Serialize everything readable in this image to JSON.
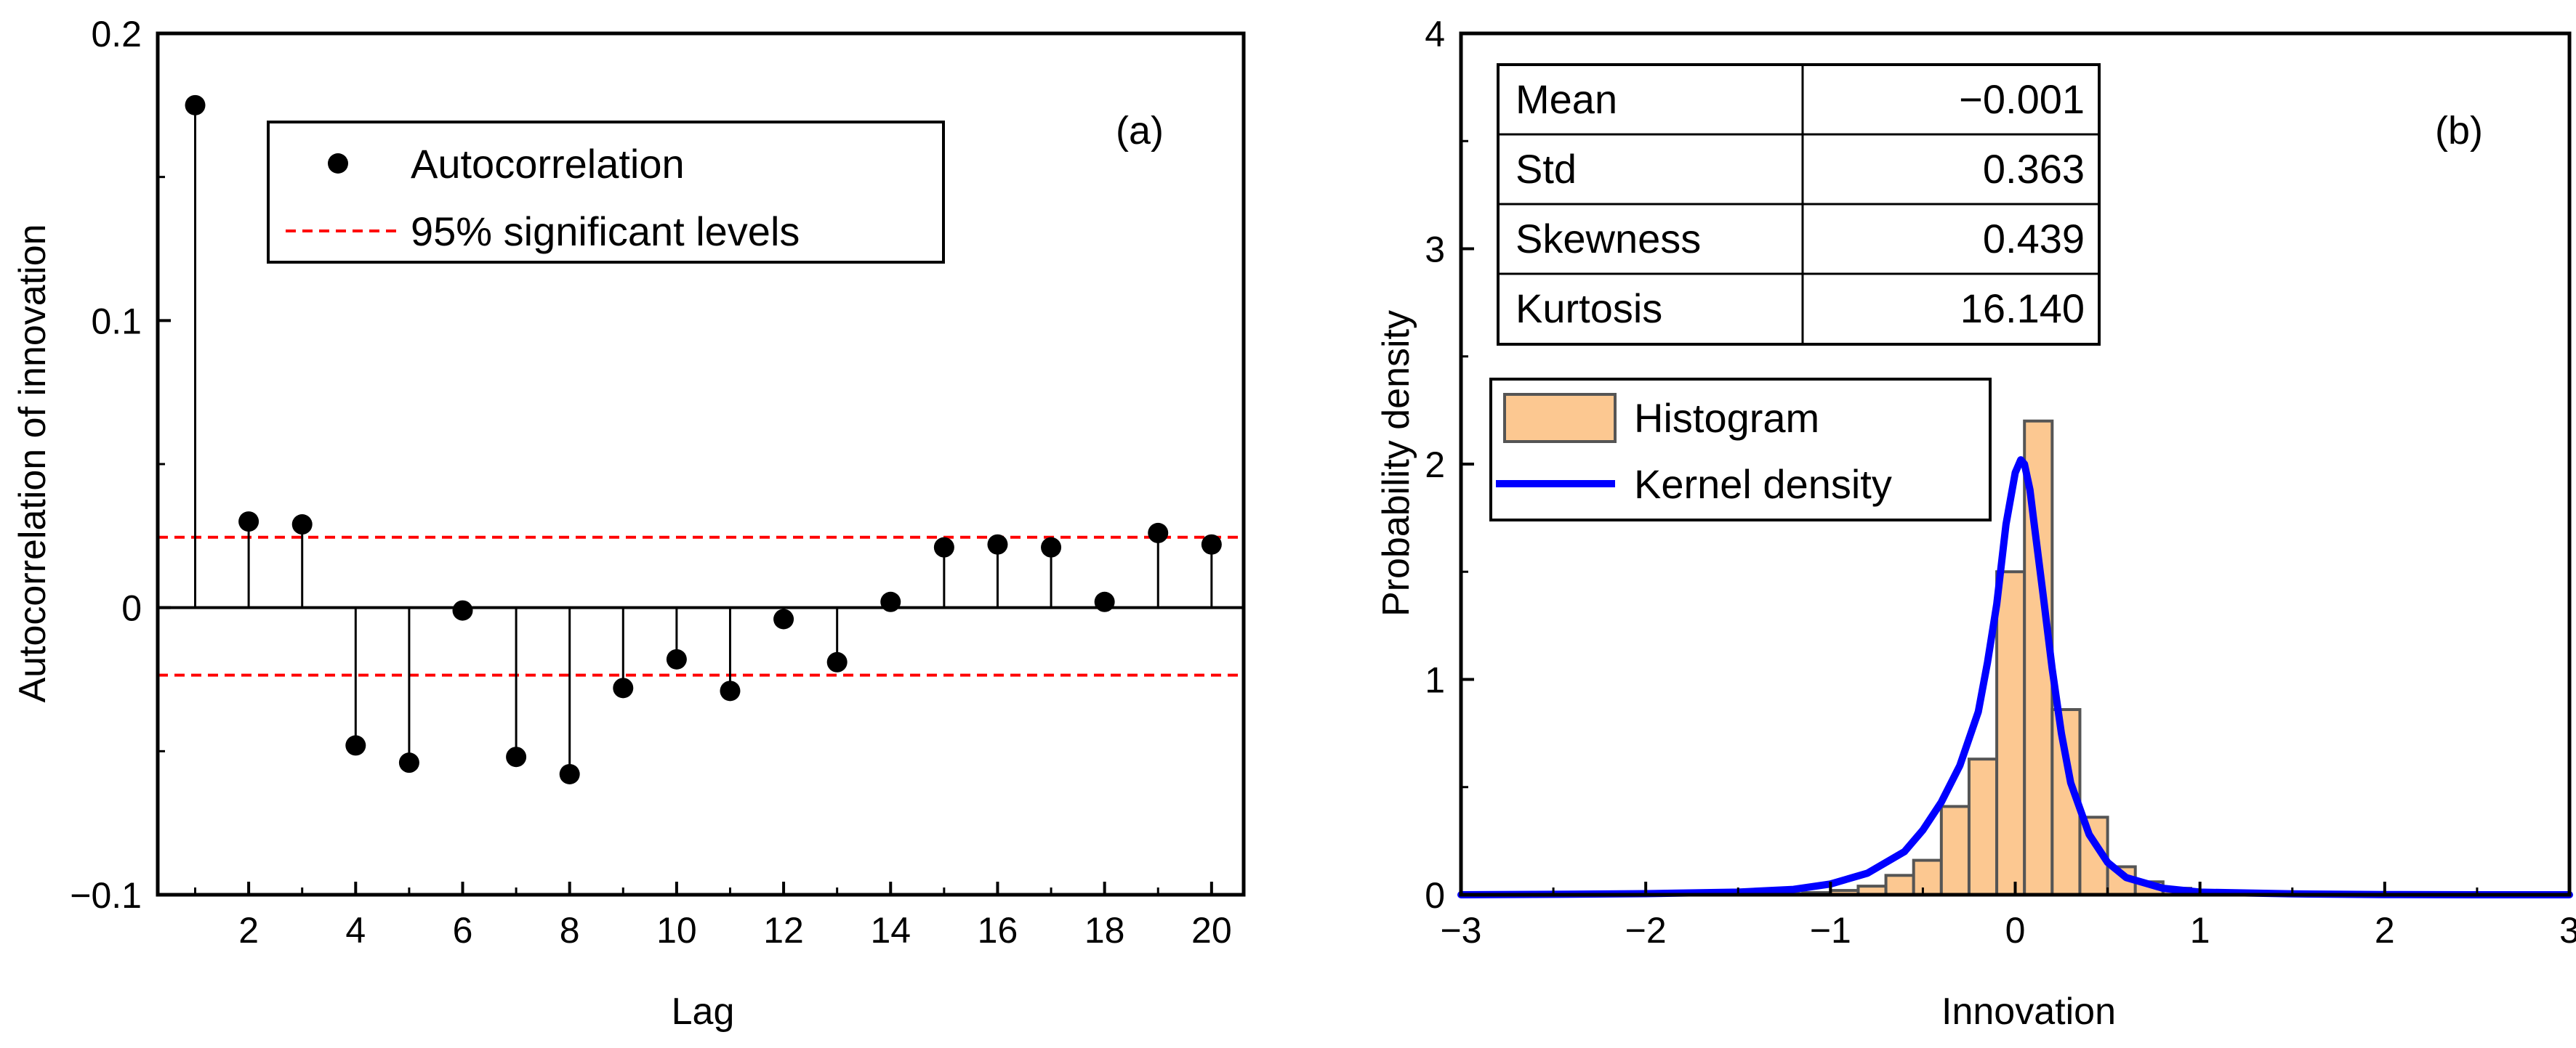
{
  "chart_data": [
    {
      "type": "stem",
      "panel_label": "(a)",
      "xlabel": "Lag",
      "ylabel": "Autocorrelation of innovation",
      "xlim": [
        0.3,
        20.6
      ],
      "ylim": [
        -0.1,
        0.2
      ],
      "xticks": [
        2,
        4,
        6,
        8,
        10,
        12,
        14,
        16,
        18,
        20
      ],
      "xtick_labels": [
        "2",
        "4",
        "6",
        "8",
        "10",
        "12",
        "14",
        "16",
        "18",
        "20"
      ],
      "yticks": [
        -0.1,
        0,
        0.1,
        0.2
      ],
      "ytick_labels": [
        "−0.1",
        "0",
        "0.1",
        "0.2"
      ],
      "series": [
        {
          "name": "Autocorrelation",
          "x": [
            1,
            2,
            3,
            4,
            5,
            6,
            7,
            8,
            9,
            10,
            11,
            12,
            13,
            14,
            15,
            16,
            17,
            18,
            19,
            20
          ],
          "values": [
            0.175,
            0.03,
            0.029,
            -0.048,
            -0.054,
            -0.001,
            -0.052,
            -0.058,
            -0.028,
            -0.018,
            -0.029,
            -0.004,
            -0.019,
            0.002,
            0.021,
            0.022,
            0.021,
            0.002,
            0.026,
            0.022
          ]
        }
      ],
      "significance": {
        "name": "95% significant levels",
        "upper": 0.0245,
        "lower": -0.0235,
        "color": "#ff0000"
      },
      "legend_position": "top-center"
    },
    {
      "type": "histogram",
      "panel_label": "(b)",
      "xlabel": "Innovation",
      "ylabel": "Probability density",
      "xlim": [
        -3,
        3
      ],
      "ylim": [
        0,
        4
      ],
      "xticks": [
        -3,
        -2,
        -1,
        0,
        1,
        2,
        3
      ],
      "xtick_labels": [
        "−3",
        "−2",
        "−1",
        "0",
        "1",
        "2",
        "3"
      ],
      "yticks": [
        0,
        1,
        2,
        3,
        4
      ],
      "ytick_labels": [
        "0",
        "1",
        "2",
        "3",
        "4"
      ],
      "histogram": {
        "name": "Histogram",
        "color": "#fcc891",
        "bin_edges": [
          -1.3,
          -1.15,
          -1.0,
          -0.85,
          -0.7,
          -0.55,
          -0.4,
          -0.25,
          -0.1,
          0.05,
          0.2,
          0.35,
          0.5,
          0.65,
          0.8,
          0.95,
          1.1,
          1.25
        ],
        "values": [
          0.005,
          0.01,
          0.02,
          0.04,
          0.09,
          0.16,
          0.41,
          0.63,
          1.5,
          2.2,
          0.86,
          0.36,
          0.13,
          0.06,
          0.03,
          0.015,
          0.005
        ]
      },
      "kernel_density": {
        "name": "Kernel density",
        "color": "#0000ff",
        "x": [
          -3,
          -2.5,
          -2,
          -1.5,
          -1.2,
          -1,
          -0.8,
          -0.6,
          -0.5,
          -0.4,
          -0.3,
          -0.2,
          -0.15,
          -0.1,
          -0.05,
          0,
          0.03,
          0.05,
          0.08,
          0.1,
          0.15,
          0.2,
          0.25,
          0.3,
          0.4,
          0.5,
          0.6,
          0.8,
          1,
          1.5,
          2,
          2.5,
          3
        ],
        "y": [
          0,
          0.002,
          0.005,
          0.012,
          0.025,
          0.05,
          0.1,
          0.2,
          0.3,
          0.43,
          0.6,
          0.85,
          1.08,
          1.35,
          1.72,
          1.96,
          2.02,
          2.0,
          1.88,
          1.74,
          1.4,
          1.05,
          0.75,
          0.52,
          0.28,
          0.15,
          0.08,
          0.03,
          0.012,
          0.004,
          0.001,
          0,
          0
        ]
      },
      "stats_table": [
        {
          "label": "Mean",
          "value": "−0.001"
        },
        {
          "label": "Std",
          "value": "0.363"
        },
        {
          "label": "Skewness",
          "value": "0.439"
        },
        {
          "label": "Kurtosis",
          "value": "16.140"
        }
      ],
      "legend_position": "middle-left"
    }
  ]
}
